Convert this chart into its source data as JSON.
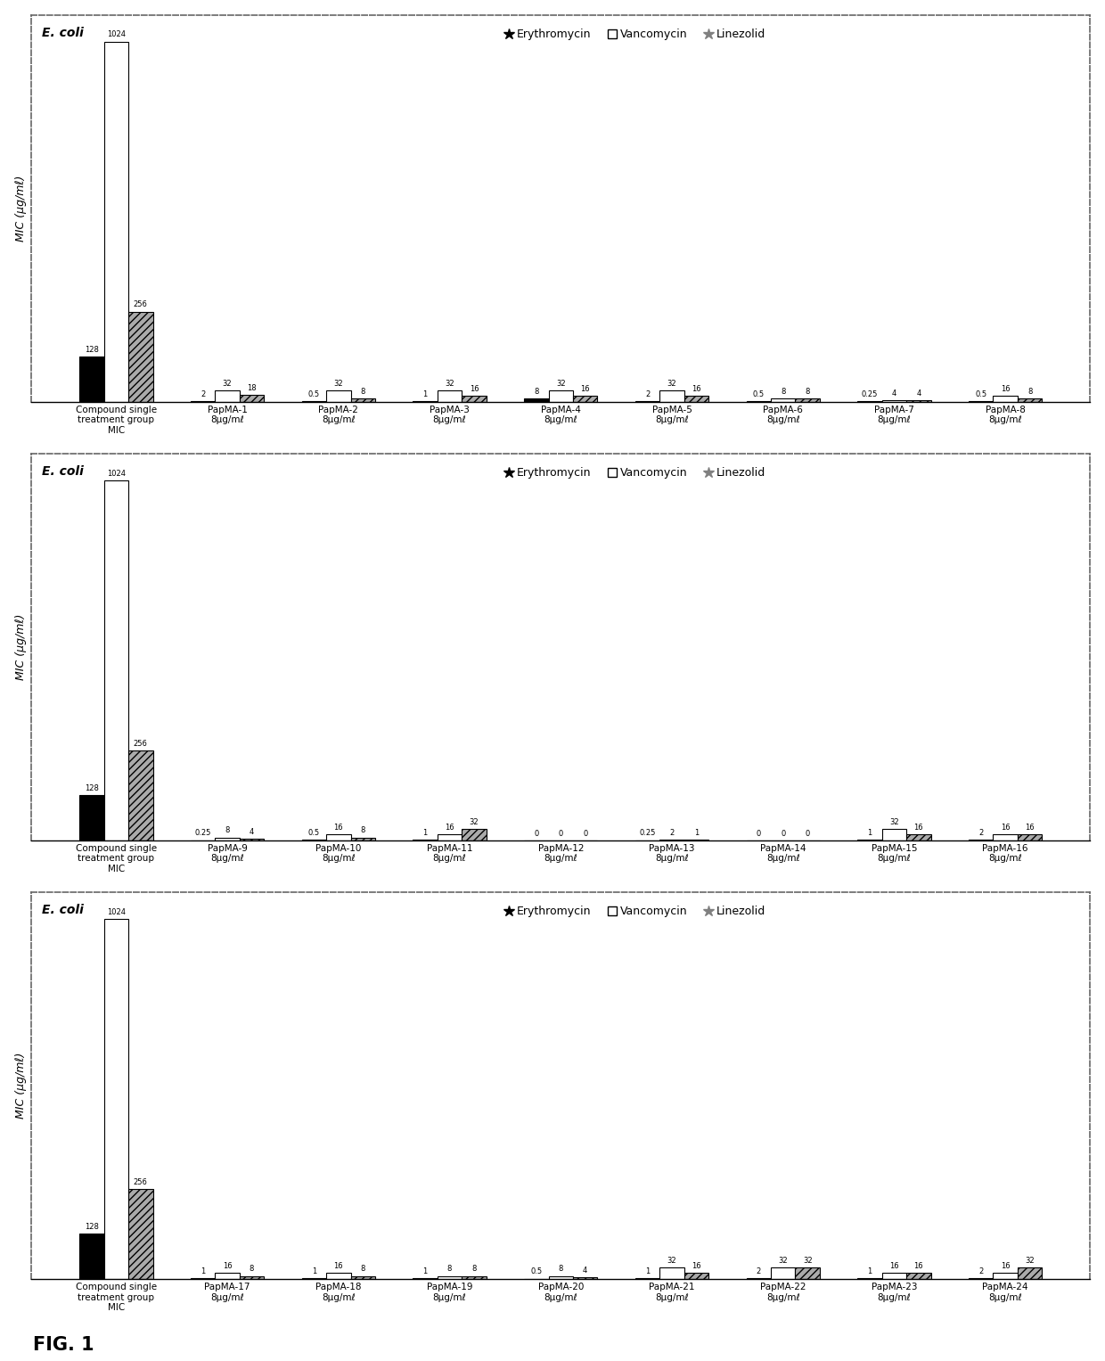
{
  "panels": [
    {
      "title": "E. coli",
      "groups": [
        "Compound single\ntreatment group\nMIC",
        "PapMA-1\n8μg/mℓ",
        "PapMA-2\n8μg/mℓ",
        "PapMA-3\n8μg/mℓ",
        "PapMA-4\n8μg/mℓ",
        "PapMA-5\n8μg/mℓ",
        "PapMA-6\n8μg/mℓ",
        "PapMA-7\n8μg/mℓ",
        "PapMA-8\n8μg/mℓ"
      ],
      "erythromycin": [
        128,
        2,
        0.5,
        1,
        8,
        2,
        0.5,
        0.25,
        0.5
      ],
      "vancomycin": [
        1024,
        32,
        32,
        32,
        32,
        32,
        8,
        4,
        16
      ],
      "linezolid": [
        256,
        18,
        8,
        16,
        16,
        16,
        8,
        4,
        8
      ],
      "ylim": 1100
    },
    {
      "title": "E. coli",
      "groups": [
        "Compound single\ntreatment group\nMIC",
        "PapMA-9\n8μg/mℓ",
        "PapMA-10\n8μg/mℓ",
        "PapMA-11\n8μg/mℓ",
        "PapMA-12\n8μg/mℓ",
        "PapMA-13\n8μg/mℓ",
        "PapMA-14\n8μg/mℓ",
        "PapMA-15\n8μg/mℓ",
        "PapMA-16\n8μg/mℓ"
      ],
      "erythromycin": [
        128,
        0.25,
        0.5,
        1,
        0,
        0.25,
        0,
        1,
        2
      ],
      "vancomycin": [
        1024,
        8,
        16,
        16,
        0,
        2,
        0,
        32,
        16
      ],
      "linezolid": [
        256,
        4,
        8,
        32,
        0,
        1,
        0,
        16,
        16
      ],
      "ylim": 1100
    },
    {
      "title": "E. coli",
      "groups": [
        "Compound single\ntreatment group\nMIC",
        "PapMA-17\n8μg/mℓ",
        "PapMA-18\n8μg/mℓ",
        "PapMA-19\n8μg/mℓ",
        "PapMA-20\n8μg/mℓ",
        "PapMA-21\n8μg/mℓ",
        "PapMA-22\n8μg/mℓ",
        "PapMA-23\n8μg/mℓ",
        "PapMA-24\n8μg/mℓ"
      ],
      "erythromycin": [
        128,
        1,
        1,
        1,
        0.5,
        1,
        2,
        1,
        2
      ],
      "vancomycin": [
        1024,
        16,
        16,
        8,
        8,
        32,
        32,
        16,
        16
      ],
      "linezolid": [
        256,
        8,
        8,
        8,
        4,
        16,
        32,
        16,
        32
      ],
      "ylim": 1100
    }
  ],
  "erythromycin_color": "#000000",
  "vancomycin_color": "#ffffff",
  "linezolid_color": "#aaaaaa",
  "ylabel": "MIC (μg/mℓ)",
  "fig_label": "FIG. 1",
  "bar_width": 0.22,
  "background_color": "#ffffff",
  "border_color": "#666666"
}
